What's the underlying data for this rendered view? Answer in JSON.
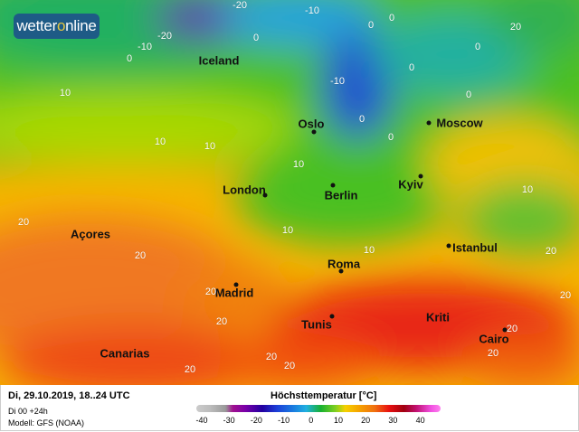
{
  "logo": {
    "text_a": "wetter",
    "text_o": "o",
    "text_b": "nline"
  },
  "cities": [
    {
      "name": "Iceland"
    },
    {
      "name": "Oslo"
    },
    {
      "name": "Moscow"
    },
    {
      "name": "London"
    },
    {
      "name": "Berlin"
    },
    {
      "name": "Kyiv"
    },
    {
      "name": "Açores"
    },
    {
      "name": "Istanbul"
    },
    {
      "name": "Roma"
    },
    {
      "name": "Madrid"
    },
    {
      "name": "Tunis"
    },
    {
      "name": "Kriti"
    },
    {
      "name": "Cairo"
    },
    {
      "name": "Canarias"
    }
  ],
  "isotherm_labels": [
    "-20",
    "-10",
    "-20",
    "-10",
    "0",
    "0",
    "0",
    "0",
    "-10",
    "0",
    "0",
    "0",
    "0",
    "10",
    "10",
    "10",
    "10",
    "0",
    "10",
    "10",
    "20",
    "20",
    "10",
    "20",
    "20",
    "20",
    "20",
    "20",
    "20",
    "20",
    "20",
    "20",
    "20"
  ],
  "footer": {
    "datetime": "Di, 29.10.2019, 18..24 UTC",
    "run": "Di 00 +24h",
    "model": "Modell: GFS (NOAA)",
    "legend_title": "Höchsttemperatur [°C]",
    "legend_ticks": [
      "-40",
      "-30",
      "-20",
      "-10",
      "0",
      "10",
      "20",
      "30",
      "40"
    ]
  },
  "colors": {
    "logo_bg": "#1e5b86",
    "logo_o": "#e6c640",
    "cold": "#1c3fd8",
    "mild": "#40c020",
    "warm": "#f5a000",
    "hot": "#e82010"
  }
}
